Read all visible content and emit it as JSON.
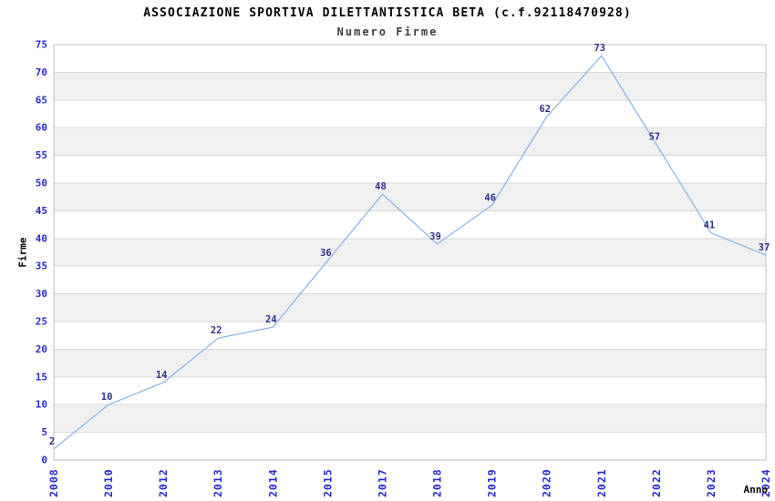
{
  "chart_data": {
    "type": "line",
    "title": "ASSOCIAZIONE SPORTIVA DILETTANTISTICA BETA (c.f.92118470928)",
    "subtitle": "Numero Firme",
    "xlabel": "Anno",
    "ylabel": "Firme",
    "categories": [
      "2008",
      "2010",
      "2012",
      "2013",
      "2014",
      "2015",
      "2017",
      "2018",
      "2019",
      "2020",
      "2021",
      "2022",
      "2023",
      "2024"
    ],
    "values": [
      2,
      10,
      14,
      22,
      24,
      36,
      48,
      39,
      46,
      62,
      73,
      57,
      41,
      37
    ],
    "ylim": [
      0,
      75
    ],
    "ytick_step": 5,
    "ytick_labels": [
      "0",
      "5",
      "10",
      "15",
      "20",
      "25",
      "30",
      "35",
      "40",
      "45",
      "50",
      "55",
      "60",
      "65",
      "70",
      "75"
    ],
    "grid": "horizontal",
    "banded_background": true,
    "legend_position": "none",
    "colors": {
      "line": "#88b1e4",
      "tick_label": "#2929d0",
      "data_label": "#303088",
      "band": "#f0f0f0",
      "gridline": "#d8d8d8",
      "border": "#c0c0c0",
      "title": "#000000",
      "subtitle": "#3d3d3d",
      "axis_title": "#000000",
      "background": "#ffffff"
    }
  }
}
